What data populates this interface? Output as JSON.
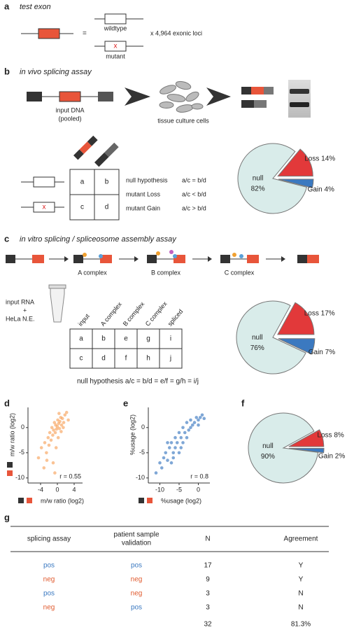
{
  "panel_a": {
    "label": "a",
    "title": "test exon",
    "equals": "=",
    "wildtype": "wildtype",
    "mutant": "mutant",
    "mutant_mark": "x",
    "loci": "x 4,964 exonic loci"
  },
  "panel_b": {
    "label": "b",
    "title": "in vivo splicing assay",
    "input": "input DNA",
    "input_note": "(pooled)",
    "cells": "tissue culture cells",
    "mutant_mark": "x",
    "grid": [
      [
        "a",
        "b"
      ],
      [
        "c",
        "d"
      ]
    ],
    "hypotheses": [
      [
        "null hypothesis",
        "a/c = b/d"
      ],
      [
        "mutant Loss",
        "a/c < b/d"
      ],
      [
        "mutant Gain",
        "a/c > b/d"
      ]
    ]
  },
  "panel_c": {
    "label": "c",
    "title": "in vitro splicing / spliceosome assembly assay",
    "steps": [
      "A complex",
      "B complex",
      "C complex"
    ],
    "input": [
      "input RNA",
      "+",
      "HeLa N.E."
    ],
    "columns": [
      "input",
      "A complex",
      "B complex",
      "C complex",
      "spliced"
    ],
    "grid": [
      [
        "a",
        "b",
        "e",
        "g",
        "i"
      ],
      [
        "c",
        "d",
        "f",
        "h",
        "j"
      ]
    ],
    "hypothesis": "null hypothesis  a/c = b/d = e/f = g/h = i/j"
  },
  "panel_d": {
    "label": "d"
  },
  "panel_e": {
    "label": "e"
  },
  "panel_f": {
    "label": "f"
  },
  "panel_g": {
    "label": "g",
    "headers": [
      [
        "splicing assay"
      ],
      [
        "patient sample",
        "validation"
      ],
      [
        "N"
      ],
      [
        "Agreement"
      ]
    ],
    "rows": [
      [
        {
          "text": "pos",
          "color": "#3a78c0"
        },
        {
          "text": "pos",
          "color": "#3a78c0"
        },
        17,
        "Y"
      ],
      [
        {
          "text": "neg",
          "color": "#e05a2e"
        },
        {
          "text": "neg",
          "color": "#e05a2e"
        },
        9,
        "Y"
      ],
      [
        {
          "text": "pos",
          "color": "#3a78c0"
        },
        {
          "text": "neg",
          "color": "#e05a2e"
        },
        3,
        "N"
      ],
      [
        {
          "text": "neg",
          "color": "#e05a2e"
        },
        {
          "text": "pos",
          "color": "#3a78c0"
        },
        3,
        "N"
      ]
    ],
    "total": {
      "N": 32,
      "agreement": "81.3%"
    }
  },
  "chart_data": [
    {
      "type": "pie",
      "categories": [
        "null",
        "Loss",
        "Gain"
      ],
      "values": [
        82,
        14,
        4
      ],
      "value_labels": [
        "82%",
        "14%",
        "4%"
      ],
      "colors": [
        "#d9ecea",
        "#e2393a",
        "#3b79c0"
      ]
    },
    {
      "type": "pie",
      "categories": [
        "null",
        "Loss",
        "Gain"
      ],
      "values": [
        76,
        17,
        7
      ],
      "value_labels": [
        "76%",
        "17%",
        "7%"
      ],
      "colors": [
        "#d9ecea",
        "#e2393a",
        "#3b79c0"
      ]
    },
    {
      "type": "scatter",
      "x_label": "m/w ratio (log2)",
      "y_label": "m/w ratio (log2)",
      "annotation": "r = 0.55",
      "color": "#f7a35c",
      "x": [
        -4.5,
        -3.8,
        -3.2,
        -3,
        -2.6,
        -2.2,
        -2,
        -1.8,
        -1.5,
        -1.3,
        -1.1,
        -0.9,
        -0.7,
        -0.5,
        -0.4,
        -0.2,
        0,
        0.1,
        0.3,
        0.5,
        0.6,
        0.8,
        1,
        1.2,
        1.5,
        1.8,
        2.2,
        2.6,
        -1,
        -0.6,
        0.2,
        0.4,
        -0.3,
        0.9,
        -2.5,
        1.4
      ],
      "y": [
        -6,
        -4,
        -8,
        -3,
        -5,
        -2,
        -3.5,
        -1,
        -2.5,
        0,
        -1.5,
        -0.5,
        1,
        -1,
        0.5,
        -0.3,
        0.2,
        1.5,
        0.8,
        -0.2,
        1.2,
        2,
        0.5,
        1.8,
        1,
        2.5,
        3,
        1.5,
        -7,
        -9,
        -2,
        2.8,
        -4,
        -0.8,
        -6.5,
        0
      ],
      "xlim": [
        -7,
        6
      ],
      "ylim": [
        -11,
        4
      ],
      "xticks": [
        -4,
        0,
        4
      ],
      "yticks": [
        0,
        -5,
        -10
      ]
    },
    {
      "type": "scatter",
      "x_label": "%usage (log2)",
      "y_label": "%usage (log2)",
      "annotation": "r = 0.8",
      "color": "#3a78c0",
      "x": [
        -11,
        -10,
        -9.5,
        -9,
        -8.5,
        -8,
        -7.5,
        -7,
        -7,
        -6.5,
        -6,
        -6,
        -5.5,
        -5,
        -5,
        -4.5,
        -4,
        -4,
        -3.5,
        -3,
        -3,
        -2.5,
        -2,
        -2,
        -1.5,
        -1,
        -0.5,
        0,
        0,
        0.5,
        1,
        1.5,
        -8,
        -6.5,
        -4.5
      ],
      "y": [
        -9,
        -7,
        -8,
        -6,
        -5,
        -6.5,
        -4,
        -7,
        -3,
        -5,
        -4,
        -2,
        -3,
        -5,
        -1,
        -2,
        -3,
        0,
        -1,
        -2,
        1,
        -0.5,
        0,
        1.5,
        0.5,
        1,
        2,
        1.5,
        0.5,
        2,
        2.5,
        1.8,
        -3,
        -6,
        -4
      ],
      "xlim": [
        -13,
        3
      ],
      "ylim": [
        -11,
        4
      ],
      "xticks": [
        -10,
        -5,
        0
      ],
      "yticks": [
        0,
        -5,
        -10
      ]
    },
    {
      "type": "pie",
      "categories": [
        "null",
        "Loss",
        "Gain"
      ],
      "values": [
        90,
        8,
        2
      ],
      "value_labels": [
        "90%",
        "8%",
        "2%"
      ],
      "colors": [
        "#d9ecea",
        "#e2393a",
        "#3b79c0"
      ]
    }
  ]
}
